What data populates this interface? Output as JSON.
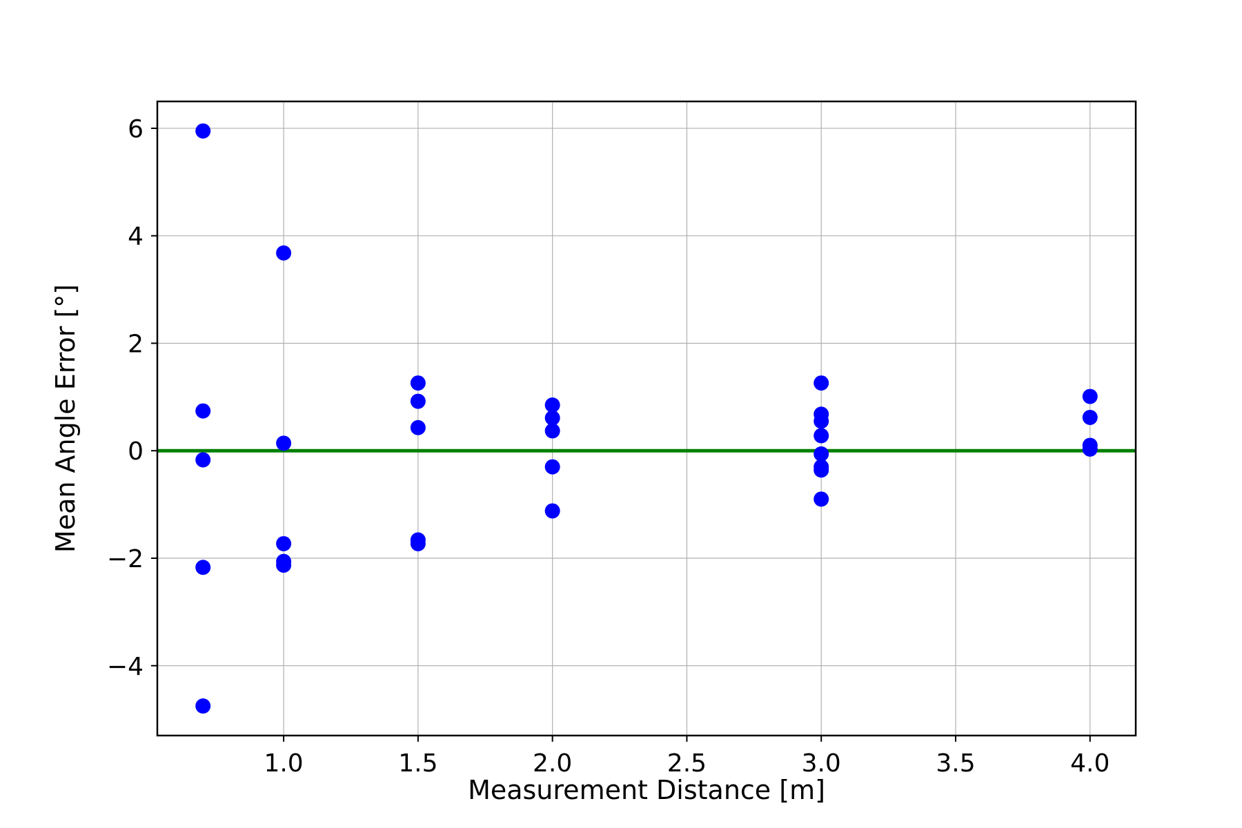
{
  "chart_data": {
    "type": "scatter",
    "title": "",
    "xlabel": "Measurement Distance [m]",
    "ylabel": "Mean Angle Error [°]",
    "xlim": [
      0.53,
      4.17
    ],
    "ylim": [
      -5.3,
      6.5
    ],
    "x_ticks": [
      {
        "value": 1.0,
        "label": "1.0"
      },
      {
        "value": 1.5,
        "label": "1.5"
      },
      {
        "value": 2.0,
        "label": "2.0"
      },
      {
        "value": 2.5,
        "label": "2.5"
      },
      {
        "value": 3.0,
        "label": "3.0"
      },
      {
        "value": 3.5,
        "label": "3.5"
      },
      {
        "value": 4.0,
        "label": "4.0"
      }
    ],
    "y_ticks": [
      {
        "value": -4,
        "label": "−4"
      },
      {
        "value": -2,
        "label": "−2"
      },
      {
        "value": 0,
        "label": "0"
      },
      {
        "value": 2,
        "label": "2"
      },
      {
        "value": 4,
        "label": "4"
      },
      {
        "value": 6,
        "label": "6"
      }
    ],
    "grid": true,
    "reference_line": {
      "y": 0,
      "color": "#008000"
    },
    "marker_color": "#0000ff",
    "series": [
      {
        "points": [
          {
            "x": 0.7,
            "y": 5.95
          },
          {
            "x": 0.7,
            "y": 0.74
          },
          {
            "x": 0.7,
            "y": -0.17
          },
          {
            "x": 0.7,
            "y": -2.17
          },
          {
            "x": 0.7,
            "y": -4.75
          },
          {
            "x": 1.0,
            "y": 3.68
          },
          {
            "x": 1.0,
            "y": 0.14
          },
          {
            "x": 1.0,
            "y": -1.73
          },
          {
            "x": 1.0,
            "y": -2.06
          },
          {
            "x": 1.0,
            "y": -2.13
          },
          {
            "x": 1.5,
            "y": 1.26
          },
          {
            "x": 1.5,
            "y": 0.92
          },
          {
            "x": 1.5,
            "y": 0.43
          },
          {
            "x": 1.5,
            "y": -1.66
          },
          {
            "x": 1.5,
            "y": -1.73
          },
          {
            "x": 2.0,
            "y": 0.85
          },
          {
            "x": 2.0,
            "y": 0.61
          },
          {
            "x": 2.0,
            "y": 0.37
          },
          {
            "x": 2.0,
            "y": -0.3
          },
          {
            "x": 2.0,
            "y": -1.12
          },
          {
            "x": 3.0,
            "y": 1.26
          },
          {
            "x": 3.0,
            "y": 0.68
          },
          {
            "x": 3.0,
            "y": 0.55
          },
          {
            "x": 3.0,
            "y": 0.28
          },
          {
            "x": 3.0,
            "y": -0.06
          },
          {
            "x": 3.0,
            "y": -0.3
          },
          {
            "x": 3.0,
            "y": -0.36
          },
          {
            "x": 3.0,
            "y": -0.9
          },
          {
            "x": 4.0,
            "y": 1.01
          },
          {
            "x": 4.0,
            "y": 0.62
          },
          {
            "x": 4.0,
            "y": 0.1
          },
          {
            "x": 4.0,
            "y": 0.03
          }
        ]
      }
    ]
  }
}
